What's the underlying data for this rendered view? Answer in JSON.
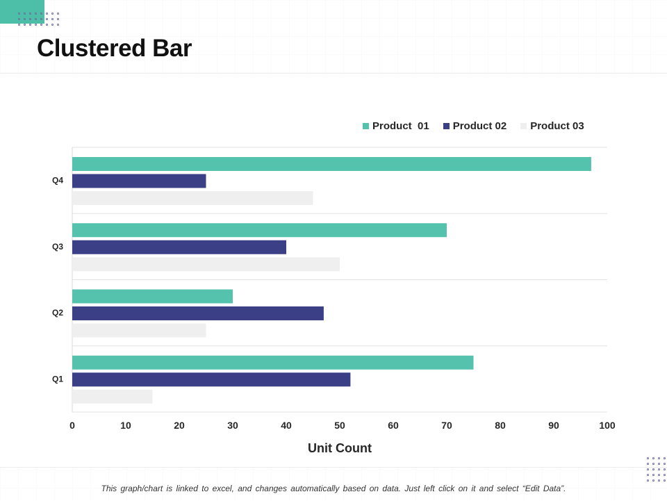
{
  "page": {
    "title": "Clustered Bar",
    "footer_note": "This graph/chart is linked to excel, and changes automatically based on data. Just left click on it and select “Edit Data”."
  },
  "colors": {
    "accent": "#4dbfa8",
    "product_01": "#54c2ac",
    "product_02": "#3a3f86",
    "product_03": "#efefef",
    "gridline": "#e2e2e2",
    "axis_text": "#262626"
  },
  "chart_data": {
    "type": "bar",
    "orientation": "horizontal",
    "title": "",
    "categories": [
      "Q1",
      "Q2",
      "Q3",
      "Q4"
    ],
    "series": [
      {
        "name": "Product  01",
        "values": [
          75,
          30,
          70,
          97
        ]
      },
      {
        "name": "Product 02",
        "values": [
          52,
          47,
          40,
          25
        ]
      },
      {
        "name": "Product 03",
        "values": [
          15,
          25,
          50,
          45
        ]
      }
    ],
    "xlabel": "Unit Count",
    "ylabel": "",
    "xlim": [
      0,
      100
    ],
    "x_ticks": [
      0,
      10,
      20,
      30,
      40,
      50,
      60,
      70,
      80,
      90,
      100
    ],
    "legend_position": "top-right",
    "grid": true
  }
}
